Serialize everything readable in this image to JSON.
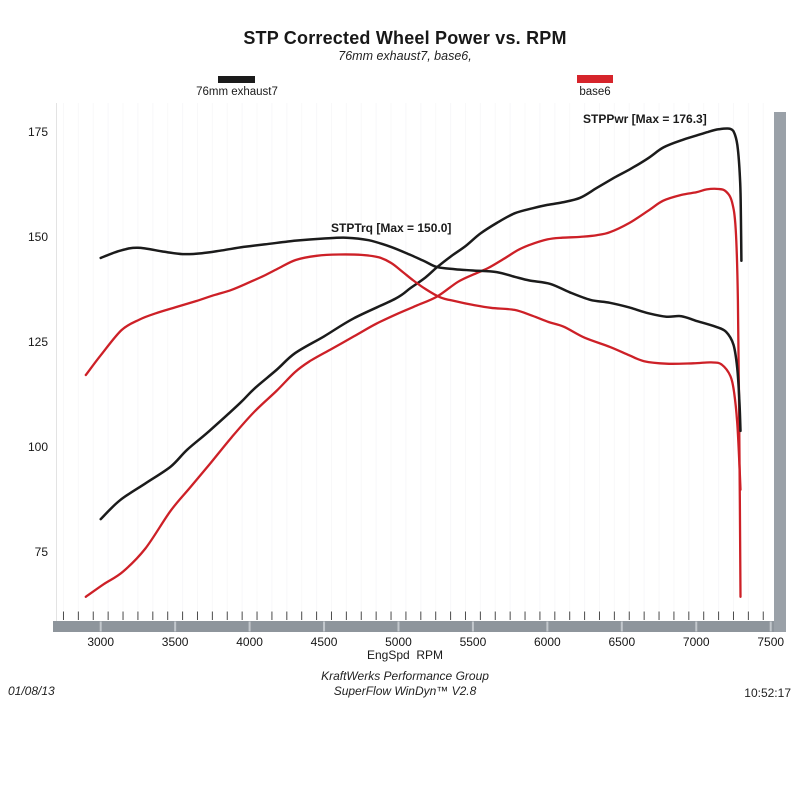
{
  "header": {
    "title": "STP Corrected Wheel Power vs. RPM",
    "subtitle": "76mm exhaust7, base6,"
  },
  "legend": {
    "left": {
      "label": "76mm exhaust7",
      "color": "#1b1b1b"
    },
    "right": {
      "label": "base6",
      "color": "#d6242b"
    }
  },
  "chart_data": {
    "type": "line",
    "title": "STP Corrected Wheel Power vs. RPM",
    "subtitle": "76mm exhaust7, base6,",
    "xlabel": "EngSpd  RPM",
    "ylabel": "",
    "x_ticks": [
      3000,
      3500,
      4000,
      4500,
      5000,
      5500,
      6000,
      6500,
      7000,
      7500
    ],
    "y_ticks": [
      175,
      150,
      125,
      100,
      75
    ],
    "x_minor_step": 100,
    "xlim": [
      2706,
      7512
    ],
    "ylim": [
      58,
      182
    ],
    "grid": false,
    "legend_position": "top",
    "annotations": [
      {
        "text": "STPPwr [Max = 176.3]",
        "series": "76mm exhaust7 STPPwr"
      },
      {
        "text": "STPTrq [Max = 150.0]",
        "series": "76mm exhaust7 STPTrq"
      }
    ],
    "series": [
      {
        "name": "76mm exhaust7 — STPPwr",
        "measure": "power",
        "max": 176.3,
        "color": "#1b1b1b",
        "width": 2.5,
        "points": [
          [
            3000,
            83
          ],
          [
            3130,
            87.5
          ],
          [
            3300,
            91.5
          ],
          [
            3470,
            95.5
          ],
          [
            3580,
            99.5
          ],
          [
            3730,
            104
          ],
          [
            3935,
            110.6
          ],
          [
            4030,
            114
          ],
          [
            4180,
            118.5
          ],
          [
            4305,
            122.5
          ],
          [
            4500,
            126.5
          ],
          [
            4700,
            130.8
          ],
          [
            4980,
            135.5
          ],
          [
            5080,
            138
          ],
          [
            5180,
            140.5
          ],
          [
            5260,
            143
          ],
          [
            5350,
            145.5
          ],
          [
            5450,
            148
          ],
          [
            5550,
            151
          ],
          [
            5660,
            153.5
          ],
          [
            5780,
            155.8
          ],
          [
            5900,
            157
          ],
          [
            6000,
            157.8
          ],
          [
            6100,
            158.4
          ],
          [
            6220,
            159.5
          ],
          [
            6330,
            161.8
          ],
          [
            6450,
            164.3
          ],
          [
            6560,
            166.4
          ],
          [
            6680,
            169
          ],
          [
            6780,
            171.5
          ],
          [
            6900,
            173.2
          ],
          [
            7000,
            174.3
          ],
          [
            7080,
            175.2
          ],
          [
            7150,
            175.8
          ],
          [
            7230,
            175.9
          ],
          [
            7260,
            174.5
          ],
          [
            7280,
            171
          ],
          [
            7295,
            163
          ],
          [
            7300,
            155
          ],
          [
            7303,
            144.5
          ]
        ]
      },
      {
        "name": "base6 — STPPwr",
        "measure": "power",
        "max": 161.6,
        "color": "#cd2027",
        "width": 2.3,
        "points": [
          [
            2900,
            64.5
          ],
          [
            3020,
            67.5
          ],
          [
            3150,
            70.5
          ],
          [
            3300,
            76
          ],
          [
            3470,
            85
          ],
          [
            3600,
            90.5
          ],
          [
            3730,
            96
          ],
          [
            3880,
            102.5
          ],
          [
            4030,
            108.5
          ],
          [
            4180,
            113.5
          ],
          [
            4305,
            118
          ],
          [
            4400,
            120.5
          ],
          [
            4550,
            123.5
          ],
          [
            4700,
            126.5
          ],
          [
            4850,
            129.5
          ],
          [
            5000,
            132
          ],
          [
            5120,
            133.8
          ],
          [
            5260,
            136
          ],
          [
            5400,
            139.5
          ],
          [
            5520,
            141.5
          ],
          [
            5604,
            142.8
          ],
          [
            5700,
            144.8
          ],
          [
            5800,
            147
          ],
          [
            5883,
            148.3
          ],
          [
            6000,
            149.6
          ],
          [
            6100,
            150
          ],
          [
            6220,
            150.2
          ],
          [
            6330,
            150.6
          ],
          [
            6420,
            151.3
          ],
          [
            6550,
            153.5
          ],
          [
            6680,
            156.5
          ],
          [
            6778,
            158.8
          ],
          [
            6900,
            160.2
          ],
          [
            7000,
            160.8
          ],
          [
            7070,
            161.5
          ],
          [
            7150,
            161.6
          ],
          [
            7200,
            161
          ],
          [
            7240,
            158.5
          ],
          [
            7265,
            152
          ],
          [
            7280,
            135
          ],
          [
            7290,
            100
          ],
          [
            7297,
            64.5
          ]
        ]
      },
      {
        "name": "76mm exhaust7 — STPTrq",
        "measure": "torque",
        "max": 150.0,
        "color": "#1b1b1b",
        "width": 2.5,
        "points": [
          [
            3000,
            145.2
          ],
          [
            3130,
            146.9
          ],
          [
            3250,
            147.6
          ],
          [
            3420,
            146.7
          ],
          [
            3550,
            146.1
          ],
          [
            3680,
            146.3
          ],
          [
            3820,
            147
          ],
          [
            3960,
            147.8
          ],
          [
            4100,
            148.4
          ],
          [
            4310,
            149.3
          ],
          [
            4500,
            149.8
          ],
          [
            4650,
            150
          ],
          [
            4800,
            149.4
          ],
          [
            4950,
            147.8
          ],
          [
            5080,
            145.9
          ],
          [
            5180,
            144.3
          ],
          [
            5260,
            143
          ],
          [
            5380,
            142.5
          ],
          [
            5500,
            142.2
          ],
          [
            5660,
            141.8
          ],
          [
            5780,
            140.7
          ],
          [
            5880,
            139.8
          ],
          [
            6020,
            139
          ],
          [
            6150,
            137
          ],
          [
            6290,
            135.2
          ],
          [
            6420,
            134.5
          ],
          [
            6550,
            133.4
          ],
          [
            6680,
            132
          ],
          [
            6800,
            131.2
          ],
          [
            6900,
            131.3
          ],
          [
            7000,
            130.2
          ],
          [
            7130,
            128.8
          ],
          [
            7200,
            127.6
          ],
          [
            7250,
            124.5
          ],
          [
            7275,
            119
          ],
          [
            7290,
            111
          ],
          [
            7297,
            104
          ]
        ]
      },
      {
        "name": "base6 — STPTrq",
        "measure": "torque",
        "max": 146.0,
        "color": "#cd2027",
        "width": 2.3,
        "points": [
          [
            2900,
            117.3
          ],
          [
            3000,
            122
          ],
          [
            3140,
            128
          ],
          [
            3260,
            130.5
          ],
          [
            3370,
            132
          ],
          [
            3500,
            133.4
          ],
          [
            3640,
            134.9
          ],
          [
            3760,
            136.3
          ],
          [
            3880,
            137.6
          ],
          [
            4000,
            139.4
          ],
          [
            4100,
            141
          ],
          [
            4200,
            142.8
          ],
          [
            4310,
            144.7
          ],
          [
            4450,
            145.7
          ],
          [
            4600,
            146
          ],
          [
            4750,
            145.9
          ],
          [
            4870,
            145.3
          ],
          [
            4950,
            144
          ],
          [
            5030,
            141.8
          ],
          [
            5100,
            139.8
          ],
          [
            5180,
            137.8
          ],
          [
            5280,
            135.8
          ],
          [
            5380,
            134.9
          ],
          [
            5500,
            134
          ],
          [
            5620,
            133.3
          ],
          [
            5780,
            132.8
          ],
          [
            5900,
            131.4
          ],
          [
            6010,
            129.9
          ],
          [
            6110,
            128.8
          ],
          [
            6250,
            126.2
          ],
          [
            6420,
            124
          ],
          [
            6550,
            122
          ],
          [
            6650,
            120.6
          ],
          [
            6800,
            120
          ],
          [
            6980,
            120.1
          ],
          [
            7100,
            120.3
          ],
          [
            7170,
            119.8
          ],
          [
            7230,
            117
          ],
          [
            7255,
            113
          ],
          [
            7275,
            106
          ],
          [
            7290,
            96
          ],
          [
            7297,
            90
          ]
        ]
      }
    ]
  },
  "footer": {
    "date": "01/08/13",
    "org": "KraftWerks Performance Group",
    "software": "SuperFlow WinDyn™ V2.8",
    "time": "10:52:17"
  }
}
